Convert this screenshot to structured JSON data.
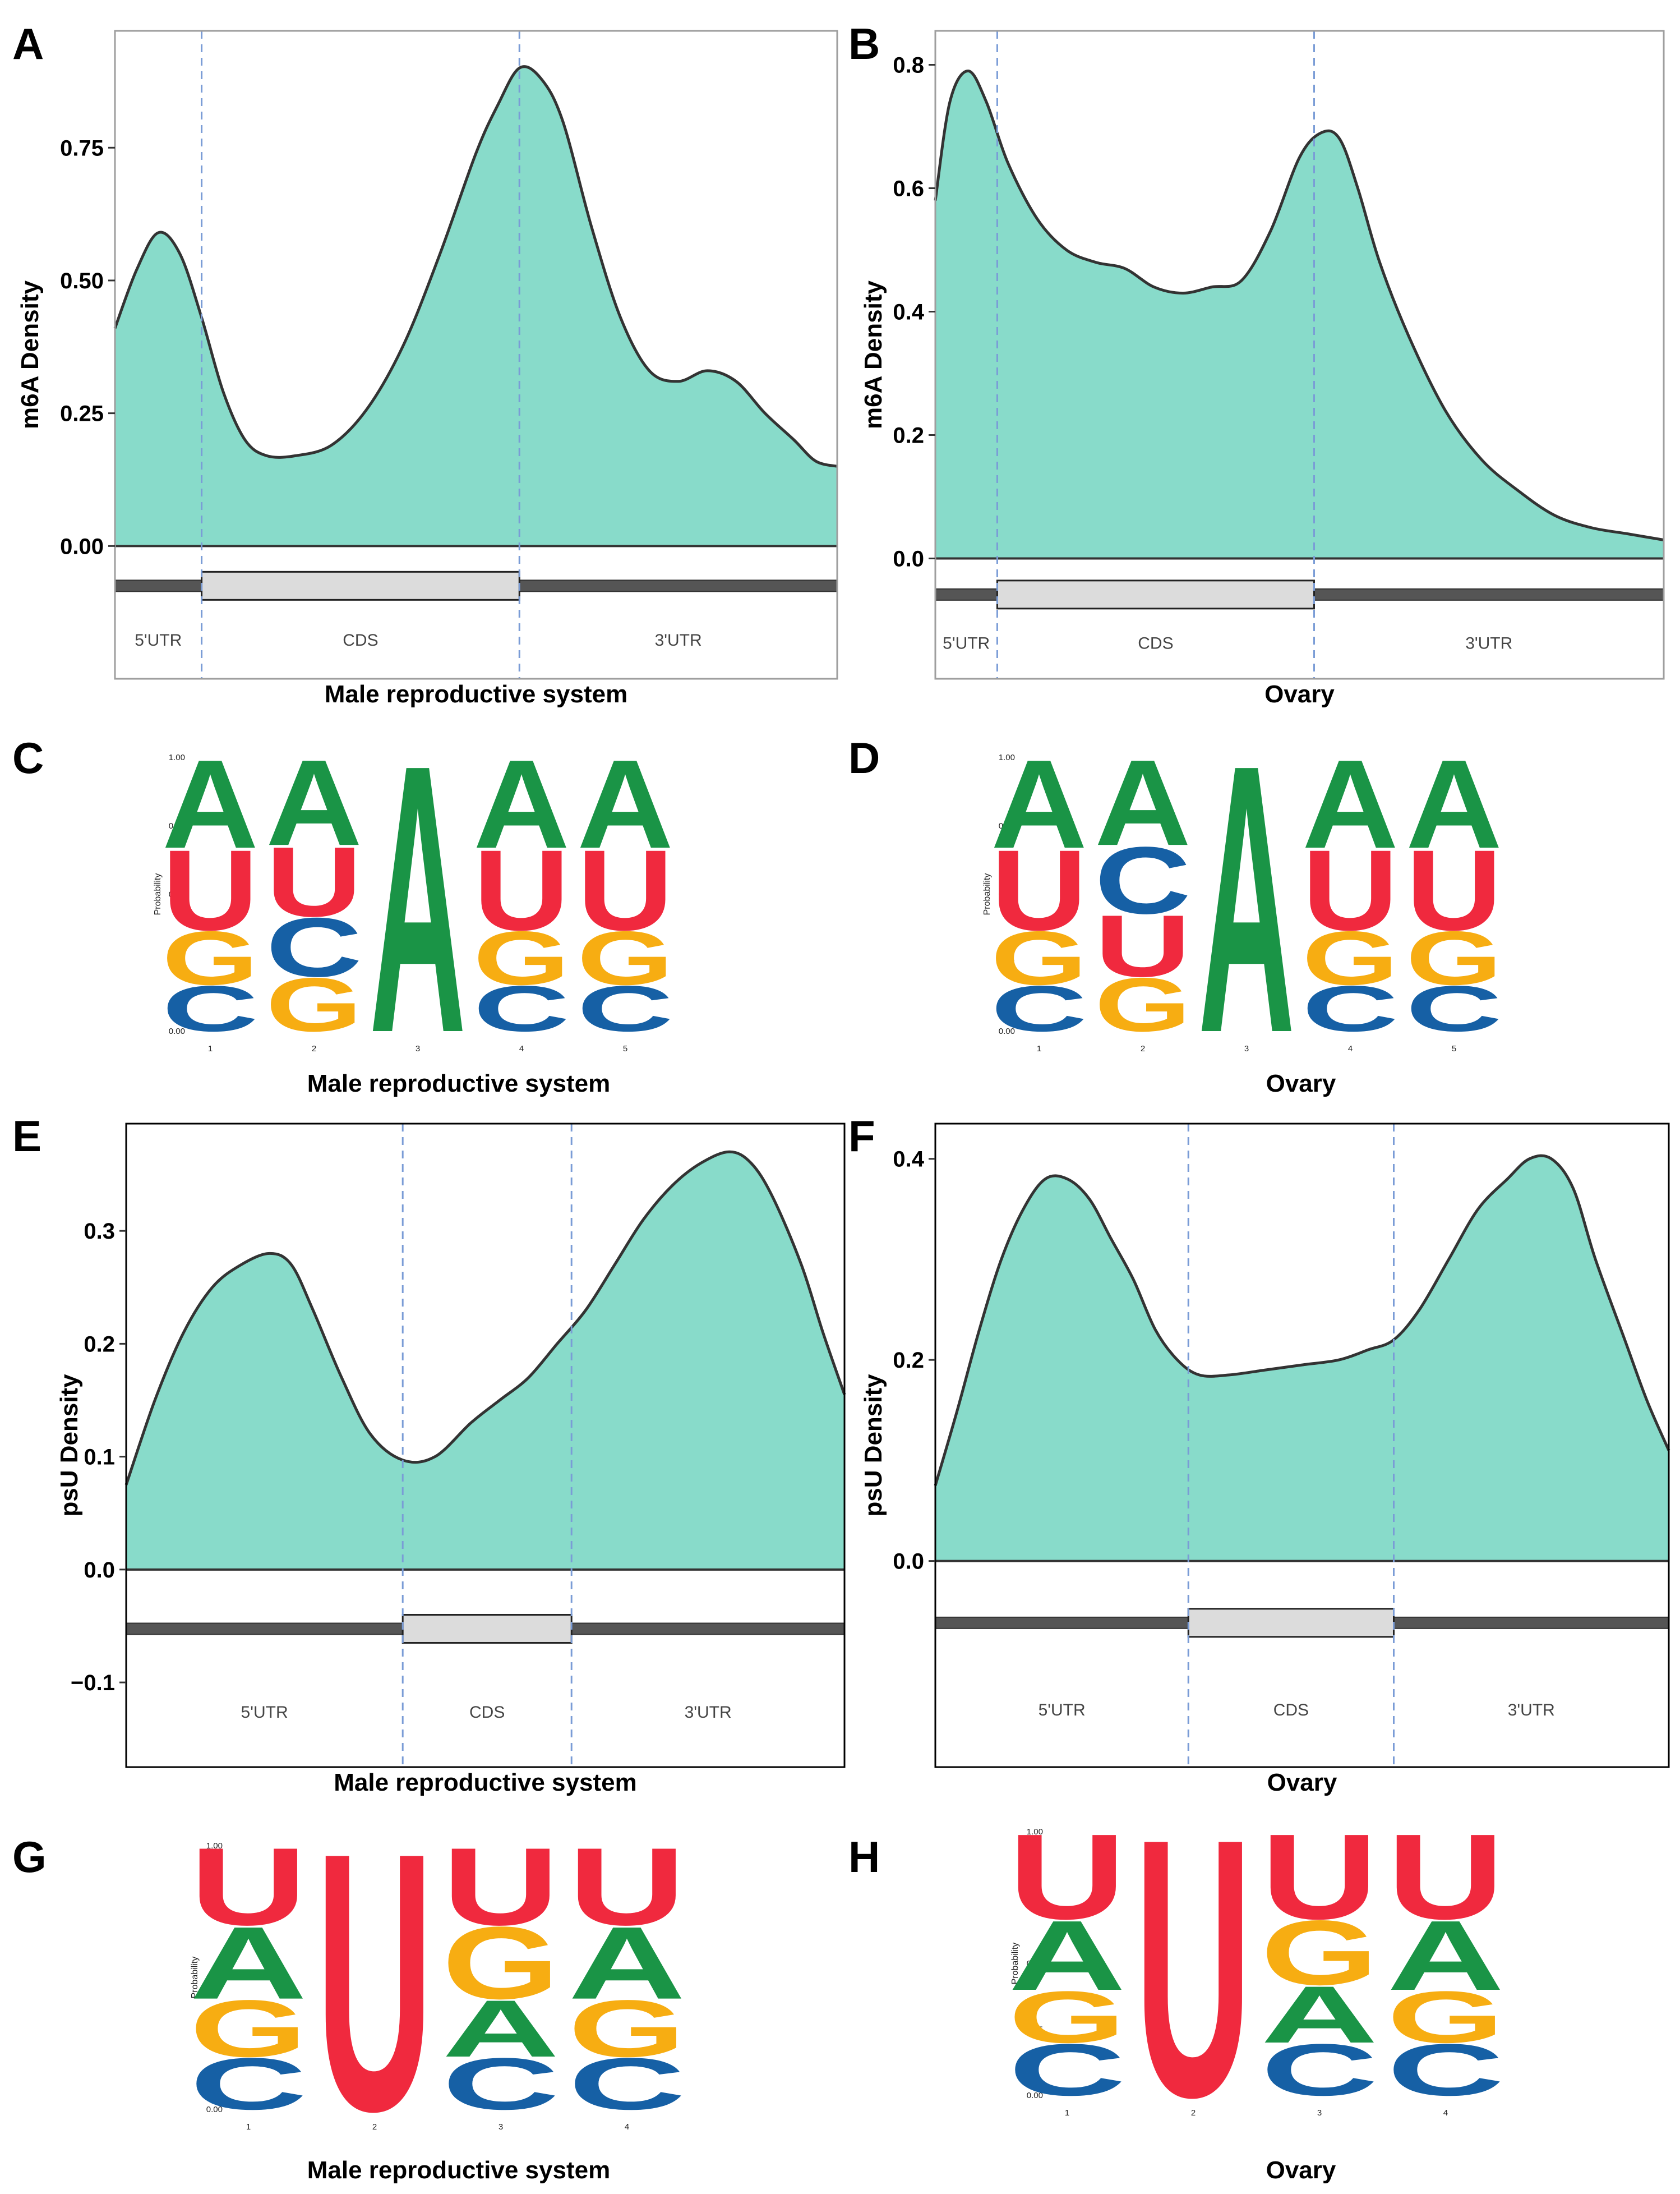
{
  "colors": {
    "density_fill": "#88dbca",
    "density_line": "#333333",
    "boundary_line": "#7a9cd6",
    "utr_bar": "#555555",
    "cds_box": "#dcdcdc",
    "A": "#1a9446",
    "U": "#f0293e",
    "G": "#f7ad12",
    "C": "#1660a5"
  },
  "chart_data": [
    {
      "panel": "A",
      "type": "area",
      "xlabel": "Male reproductive system",
      "ylabel": "m6A Density",
      "xlim": [
        0,
        1
      ],
      "ylim": [
        -0.25,
        0.97
      ],
      "yticks": [
        0.0,
        0.25,
        0.5,
        0.75
      ],
      "yticklabels": [
        "0.00",
        "0.25",
        "0.50",
        "0.75"
      ],
      "regions": [
        "5'UTR",
        "CDS",
        "3'UTR"
      ],
      "boundaries": [
        0.12,
        0.56
      ],
      "x": [
        0,
        0.03,
        0.06,
        0.09,
        0.12,
        0.15,
        0.18,
        0.21,
        0.25,
        0.3,
        0.35,
        0.4,
        0.45,
        0.5,
        0.53,
        0.56,
        0.59,
        0.62,
        0.66,
        0.7,
        0.74,
        0.78,
        0.82,
        0.86,
        0.9,
        0.94,
        0.97,
        1.0
      ],
      "y": [
        0.41,
        0.52,
        0.59,
        0.55,
        0.43,
        0.29,
        0.2,
        0.17,
        0.17,
        0.19,
        0.26,
        0.38,
        0.55,
        0.74,
        0.83,
        0.9,
        0.88,
        0.8,
        0.6,
        0.43,
        0.33,
        0.31,
        0.33,
        0.31,
        0.25,
        0.2,
        0.16,
        0.15
      ],
      "dense_y_estimates": true
    },
    {
      "panel": "B",
      "type": "area",
      "xlabel": "Ovary",
      "ylabel": "m6A Density",
      "xlim": [
        0,
        1
      ],
      "ylim": [
        -0.195,
        0.855
      ],
      "yticks": [
        0.0,
        0.2,
        0.4,
        0.6,
        0.8
      ],
      "yticklabels": [
        "0.0",
        "0.2",
        "0.4",
        "0.6",
        "0.8"
      ],
      "regions": [
        "5'UTR",
        "CDS",
        "3'UTR"
      ],
      "boundaries": [
        0.085,
        0.52
      ],
      "x": [
        0,
        0.02,
        0.045,
        0.07,
        0.1,
        0.14,
        0.18,
        0.22,
        0.26,
        0.3,
        0.34,
        0.38,
        0.42,
        0.46,
        0.5,
        0.53,
        0.555,
        0.58,
        0.61,
        0.65,
        0.7,
        0.75,
        0.8,
        0.85,
        0.9,
        0.95,
        1.0
      ],
      "y": [
        0.58,
        0.74,
        0.79,
        0.74,
        0.64,
        0.55,
        0.5,
        0.48,
        0.47,
        0.44,
        0.43,
        0.44,
        0.45,
        0.53,
        0.65,
        0.69,
        0.68,
        0.6,
        0.48,
        0.36,
        0.24,
        0.16,
        0.11,
        0.07,
        0.05,
        0.04,
        0.03
      ]
    },
    {
      "panel": "C",
      "type": "sequence_logo",
      "xlabel": "Male reproductive system",
      "ylabel": "Probability",
      "yticks": [
        "0.00",
        "0.25",
        "0.50",
        "0.75",
        "1.00"
      ],
      "positions": [
        "1",
        "2",
        "3",
        "4",
        "5"
      ],
      "stacks": [
        [
          [
            "C",
            0.17
          ],
          [
            "G",
            0.2
          ],
          [
            "U",
            0.3
          ],
          [
            "A",
            0.33
          ]
        ],
        [
          [
            "G",
            0.2
          ],
          [
            "C",
            0.22
          ],
          [
            "U",
            0.26
          ],
          [
            "A",
            0.32
          ]
        ],
        [
          [
            "A",
            1.0
          ]
        ],
        [
          [
            "C",
            0.17
          ],
          [
            "G",
            0.2
          ],
          [
            "U",
            0.3
          ],
          [
            "A",
            0.33
          ]
        ],
        [
          [
            "C",
            0.17
          ],
          [
            "G",
            0.2
          ],
          [
            "U",
            0.3
          ],
          [
            "A",
            0.33
          ]
        ]
      ]
    },
    {
      "panel": "D",
      "type": "sequence_logo",
      "xlabel": "Ovary",
      "ylabel": "Probability",
      "yticks": [
        "0.00",
        "0.25",
        "0.50",
        "0.75",
        "1.00"
      ],
      "positions": [
        "1",
        "2",
        "3",
        "4",
        "5"
      ],
      "stacks": [
        [
          [
            "C",
            0.17
          ],
          [
            "G",
            0.2
          ],
          [
            "U",
            0.3
          ],
          [
            "A",
            0.33
          ]
        ],
        [
          [
            "G",
            0.2
          ],
          [
            "U",
            0.23
          ],
          [
            "C",
            0.25
          ],
          [
            "A",
            0.32
          ]
        ],
        [
          [
            "A",
            1.0
          ]
        ],
        [
          [
            "C",
            0.17
          ],
          [
            "G",
            0.2
          ],
          [
            "U",
            0.3
          ],
          [
            "A",
            0.33
          ]
        ],
        [
          [
            "C",
            0.17
          ],
          [
            "G",
            0.2
          ],
          [
            "U",
            0.3
          ],
          [
            "A",
            0.33
          ]
        ]
      ]
    },
    {
      "panel": "E",
      "type": "area",
      "xlabel": "Male reproductive system",
      "ylabel": "psU Density",
      "xlim": [
        0,
        1
      ],
      "ylim": [
        -0.175,
        0.395
      ],
      "yticks": [
        -0.1,
        0.0,
        0.1,
        0.2,
        0.3
      ],
      "yticklabels": [
        "−0.1",
        "0.0",
        "0.1",
        "0.2",
        "0.3"
      ],
      "regions": [
        "5'UTR",
        "CDS",
        "3'UTR"
      ],
      "boundaries": [
        0.385,
        0.62
      ],
      "x": [
        0,
        0.04,
        0.08,
        0.12,
        0.16,
        0.2,
        0.23,
        0.26,
        0.3,
        0.34,
        0.385,
        0.43,
        0.48,
        0.52,
        0.56,
        0.6,
        0.64,
        0.68,
        0.72,
        0.76,
        0.8,
        0.84,
        0.87,
        0.9,
        0.94,
        0.97,
        1.0
      ],
      "y": [
        0.075,
        0.15,
        0.21,
        0.25,
        0.27,
        0.28,
        0.27,
        0.23,
        0.17,
        0.12,
        0.097,
        0.1,
        0.13,
        0.15,
        0.17,
        0.2,
        0.23,
        0.27,
        0.31,
        0.34,
        0.36,
        0.37,
        0.36,
        0.33,
        0.27,
        0.21,
        0.155
      ]
    },
    {
      "panel": "F",
      "type": "area",
      "xlabel": "Ovary",
      "ylabel": "psU Density",
      "xlim": [
        0,
        1
      ],
      "ylim": [
        -0.205,
        0.435
      ],
      "yticks": [
        0.0,
        0.2,
        0.4
      ],
      "yticklabels": [
        "0.0",
        "0.2",
        "0.4"
      ],
      "regions": [
        "5'UTR",
        "CDS",
        "3'UTR"
      ],
      "boundaries": [
        0.345,
        0.625
      ],
      "x": [
        0,
        0.03,
        0.06,
        0.09,
        0.12,
        0.15,
        0.18,
        0.21,
        0.24,
        0.27,
        0.3,
        0.33,
        0.36,
        0.4,
        0.45,
        0.5,
        0.55,
        0.59,
        0.625,
        0.66,
        0.7,
        0.74,
        0.78,
        0.81,
        0.84,
        0.87,
        0.9,
        0.94,
        0.97,
        1.0
      ],
      "y": [
        0.075,
        0.15,
        0.23,
        0.3,
        0.35,
        0.38,
        0.38,
        0.36,
        0.32,
        0.28,
        0.23,
        0.2,
        0.185,
        0.185,
        0.19,
        0.195,
        0.2,
        0.21,
        0.22,
        0.25,
        0.3,
        0.35,
        0.38,
        0.4,
        0.4,
        0.37,
        0.3,
        0.22,
        0.16,
        0.11
      ]
    },
    {
      "panel": "G",
      "type": "sequence_logo",
      "xlabel": "Male reproductive system",
      "ylabel": "Probability",
      "yticks": [
        "0.00",
        "0.25",
        "0.50",
        "0.75",
        "1.00"
      ],
      "positions": [
        "1",
        "2",
        "3",
        "4"
      ],
      "stacks": [
        [
          [
            "C",
            0.2
          ],
          [
            "G",
            0.22
          ],
          [
            "A",
            0.28
          ],
          [
            "U",
            0.3
          ]
        ],
        [
          [
            "U",
            1.0
          ]
        ],
        [
          [
            "C",
            0.2
          ],
          [
            "A",
            0.22
          ],
          [
            "G",
            0.28
          ],
          [
            "U",
            0.3
          ]
        ],
        [
          [
            "C",
            0.2
          ],
          [
            "G",
            0.22
          ],
          [
            "A",
            0.28
          ],
          [
            "U",
            0.3
          ]
        ]
      ]
    },
    {
      "panel": "H",
      "type": "sequence_logo",
      "xlabel": "Ovary",
      "ylabel": "Probability",
      "yticks": [
        "0.00",
        "0.25",
        "0.50",
        "0.75",
        "1.00"
      ],
      "positions": [
        "1",
        "2",
        "3",
        "4"
      ],
      "stacks": [
        [
          [
            "C",
            0.2
          ],
          [
            "G",
            0.2
          ],
          [
            "A",
            0.27
          ],
          [
            "U",
            0.33
          ]
        ],
        [
          [
            "U",
            1.0
          ]
        ],
        [
          [
            "C",
            0.2
          ],
          [
            "A",
            0.22
          ],
          [
            "G",
            0.25
          ],
          [
            "U",
            0.33
          ]
        ],
        [
          [
            "C",
            0.2
          ],
          [
            "G",
            0.2
          ],
          [
            "A",
            0.27
          ],
          [
            "U",
            0.33
          ]
        ]
      ]
    }
  ]
}
